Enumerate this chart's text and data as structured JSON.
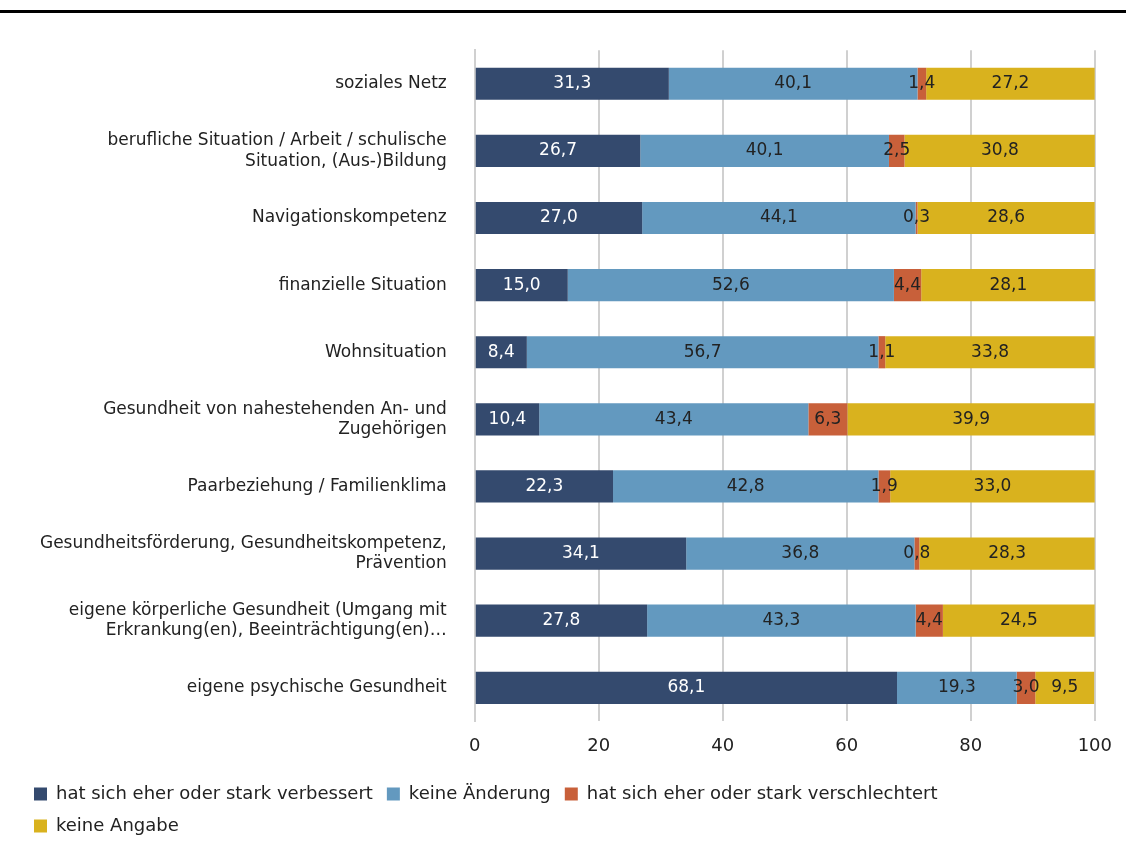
{
  "chart_data": {
    "type": "bar",
    "orientation": "horizontal",
    "stacked": true,
    "categories": [
      "soziales Netz",
      "berufliche Situation / Arbeit / schulische Situation, (Aus-)Bildung",
      "Navigationskompetenz",
      "finanzielle Situation",
      "Wohnsituation",
      "Gesundheit von nahestehenden An- und Zugehörigen",
      "Paarbeziehung / Familienklima",
      "Gesundheitsförderung, Gesundheitskompetenz, Prävention",
      "eigene körperliche Gesundheit (Umgang mit Erkrankung(en), Beeinträchtigung(en)…",
      "eigene psychische Gesundheit"
    ],
    "series": [
      {
        "name": "hat sich eher oder stark verbessert",
        "color": "#344a6e",
        "values": [
          31.3,
          26.7,
          27.0,
          15.0,
          8.4,
          10.4,
          22.3,
          34.1,
          27.8,
          68.1
        ],
        "value_labels": [
          "31,3",
          "26,7",
          "27,0",
          "15,0",
          "8,4",
          "10,4",
          "22,3",
          "34,1",
          "27,8",
          "68,1"
        ]
      },
      {
        "name": "keine Änderung",
        "color": "#6399bf",
        "values": [
          40.1,
          40.1,
          44.1,
          52.6,
          56.7,
          43.4,
          42.8,
          36.8,
          43.3,
          19.3
        ],
        "value_labels": [
          "40,1",
          "40,1",
          "44,1",
          "52,6",
          "56,7",
          "43,4",
          "42,8",
          "36,8",
          "43,3",
          "19,3"
        ]
      },
      {
        "name": "hat sich eher oder stark verschlechtert",
        "color": "#c8603a",
        "values": [
          1.4,
          2.5,
          0.3,
          4.4,
          1.1,
          6.3,
          1.9,
          0.8,
          4.4,
          3.0
        ],
        "value_labels": [
          "1,4",
          "2,5",
          "0,3",
          "4,4",
          "1,1",
          "6,3",
          "1,9",
          "0,8",
          "4,4",
          "3,0"
        ]
      },
      {
        "name": "keine Angabe",
        "color": "#d9b21e",
        "values": [
          27.2,
          30.8,
          28.6,
          28.1,
          33.8,
          39.9,
          33.0,
          28.3,
          24.5,
          9.5
        ],
        "value_labels": [
          "27,2",
          "30,8",
          "28,6",
          "28,1",
          "33,8",
          "39,9",
          "33,0",
          "28,3",
          "24,5",
          "9,5"
        ]
      }
    ],
    "xlim": [
      0,
      100
    ],
    "xticks": [
      0,
      20,
      40,
      60,
      80,
      100
    ],
    "grid": "x",
    "legend": "bottom"
  }
}
